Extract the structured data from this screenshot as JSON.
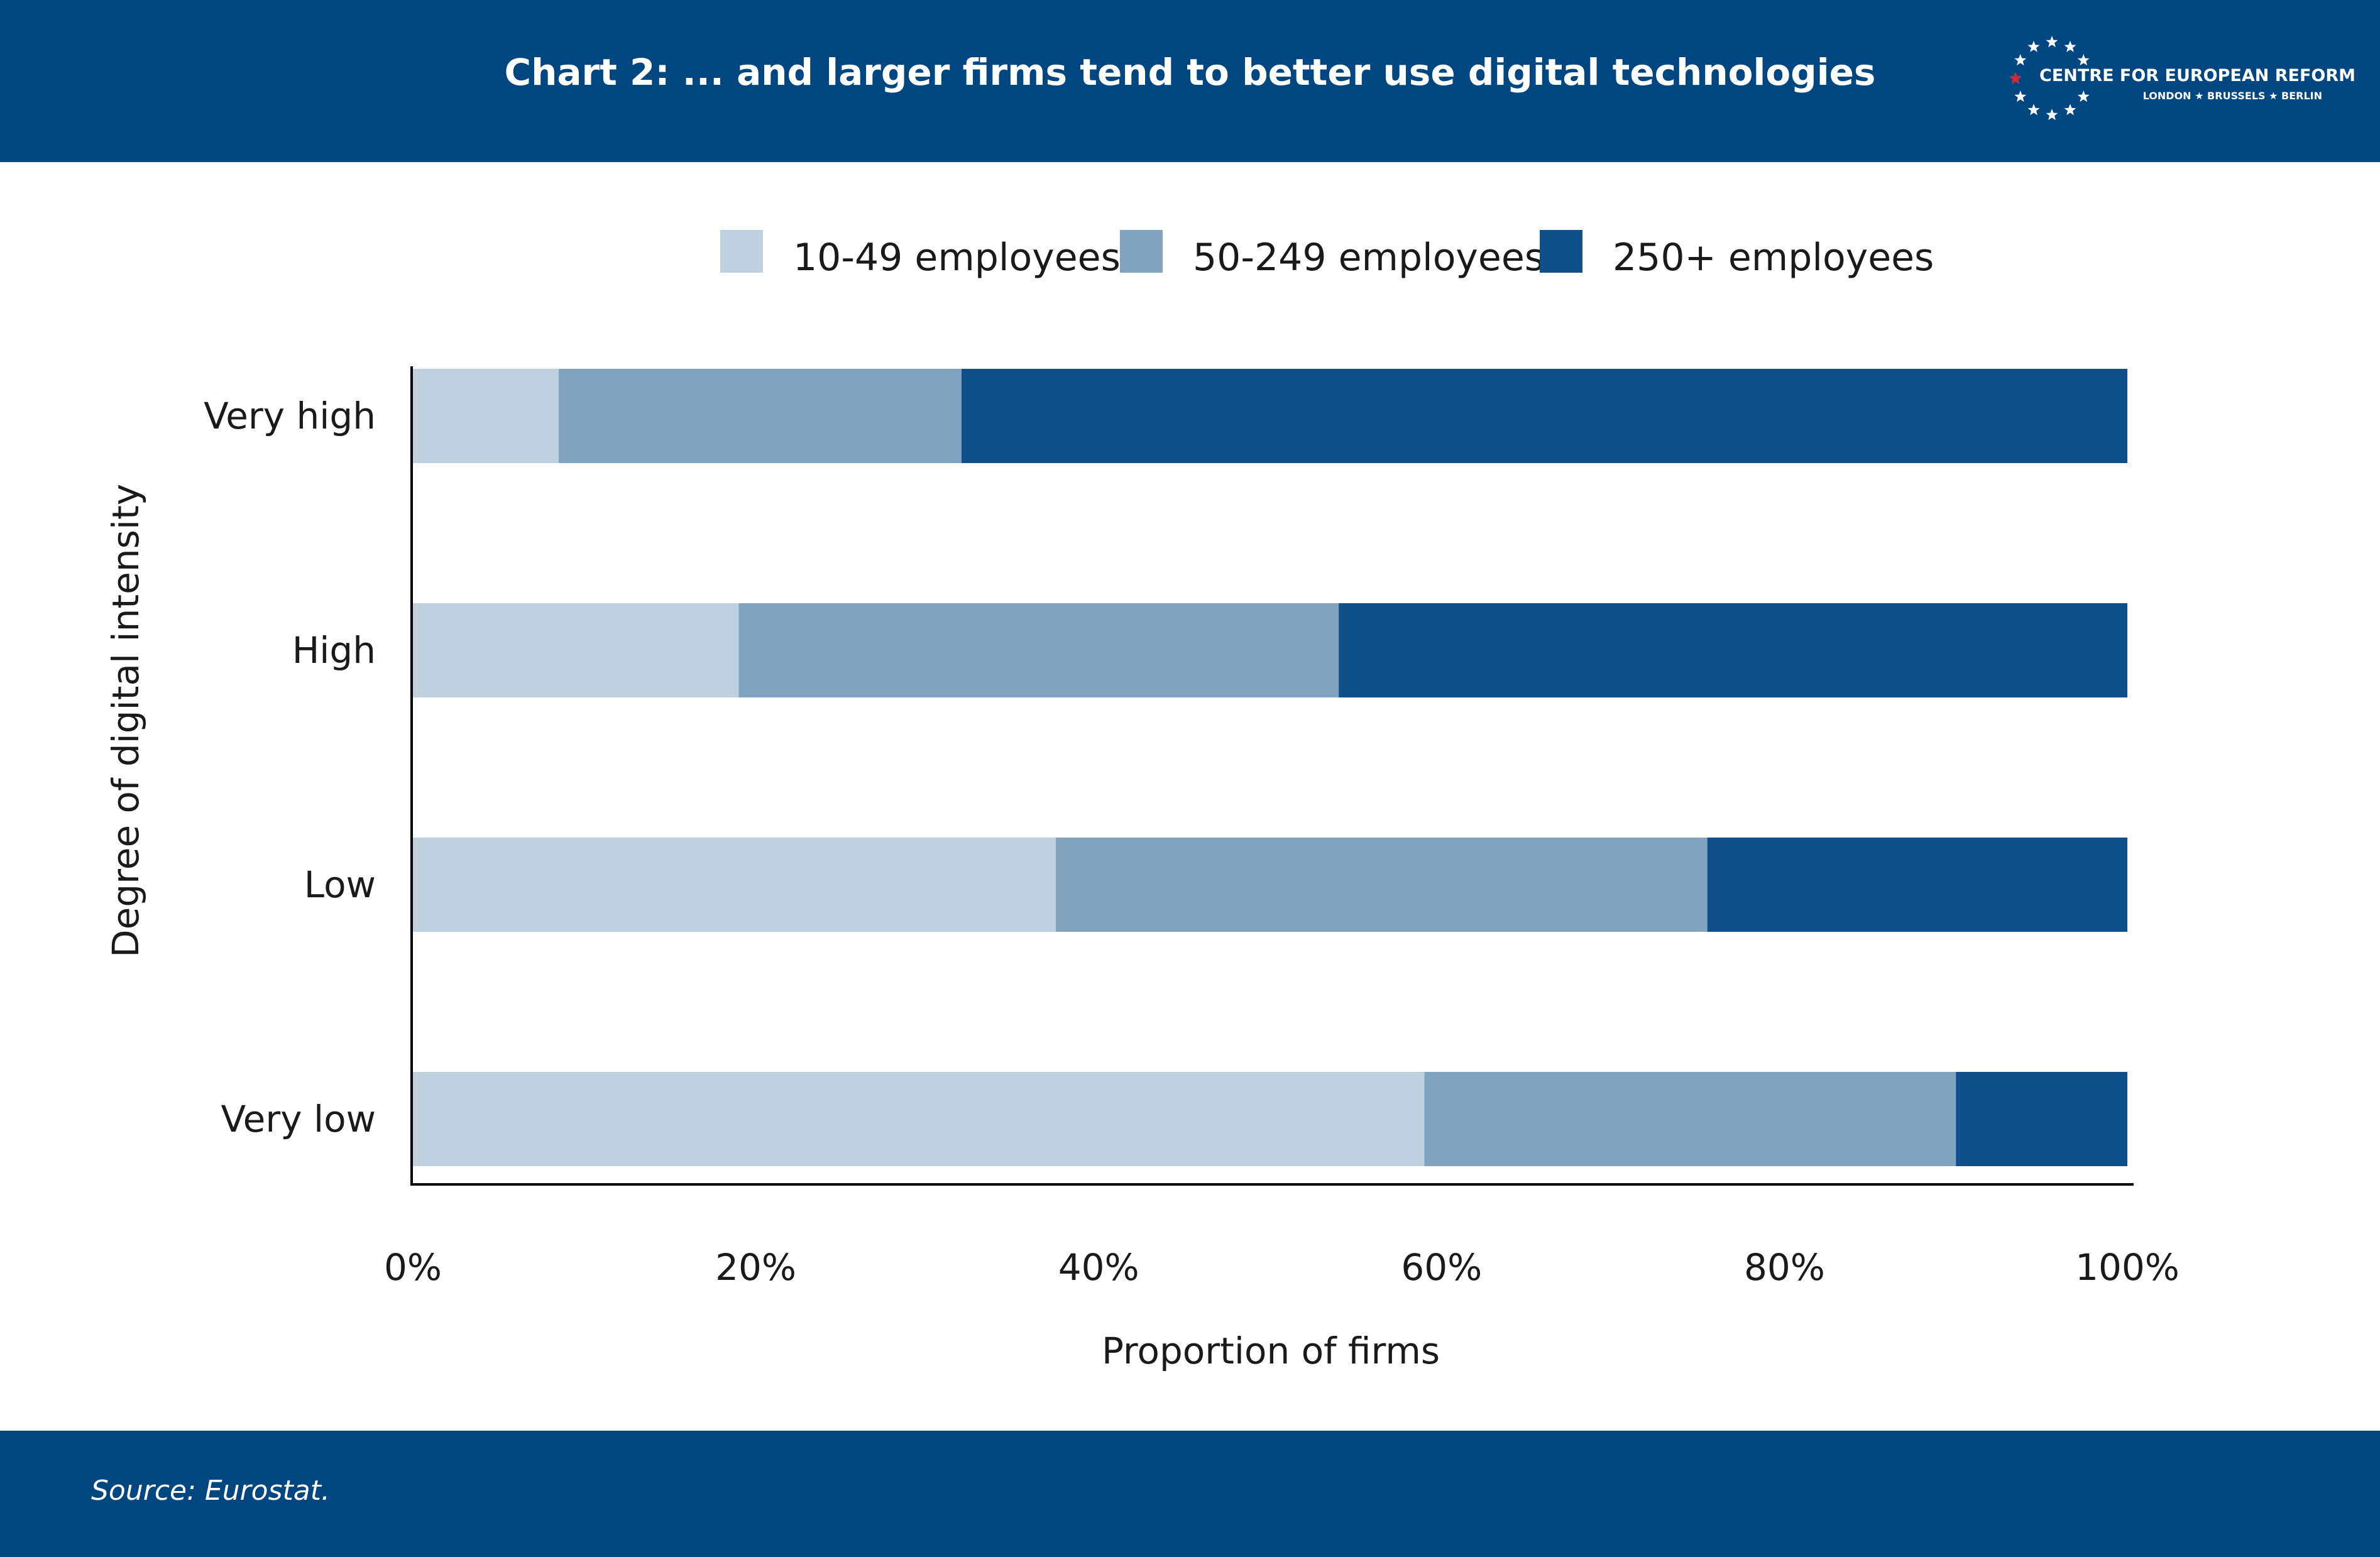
{
  "header": {
    "title": "Chart 2: ... and larger firms tend to better use digital technologies",
    "logo": {
      "name": "CENTRE FOR EUROPEAN REFORM",
      "cities": "LONDON ★ BRUSSELS ★ BERLIN",
      "icon": "star-circle-icon"
    }
  },
  "footer": {
    "source": "Source: Eurostat."
  },
  "colors": {
    "brand": "#004681",
    "series": [
      "#bfd0de",
      "#80a3c0",
      "#0f5088"
    ]
  },
  "chart_data": {
    "type": "bar",
    "orientation": "horizontal",
    "stacked": true,
    "categories": [
      "Very high",
      "High",
      "Low",
      "Very low"
    ],
    "series": [
      {
        "name": "10-49 employees",
        "values": [
          8.5,
          19,
          37.5,
          59
        ]
      },
      {
        "name": "50-249 employees",
        "values": [
          23.5,
          35,
          38,
          31
        ]
      },
      {
        "name": "250+ employees",
        "values": [
          68,
          46,
          24.5,
          10
        ]
      }
    ],
    "xlabel": "Proportion of firms",
    "ylabel": "Degree of digital intensity",
    "xlim": [
      0,
      100
    ],
    "xticks": [
      "0%",
      "20%",
      "40%",
      "60%",
      "80%",
      "100%"
    ],
    "legend_position": "top",
    "grid": false
  }
}
